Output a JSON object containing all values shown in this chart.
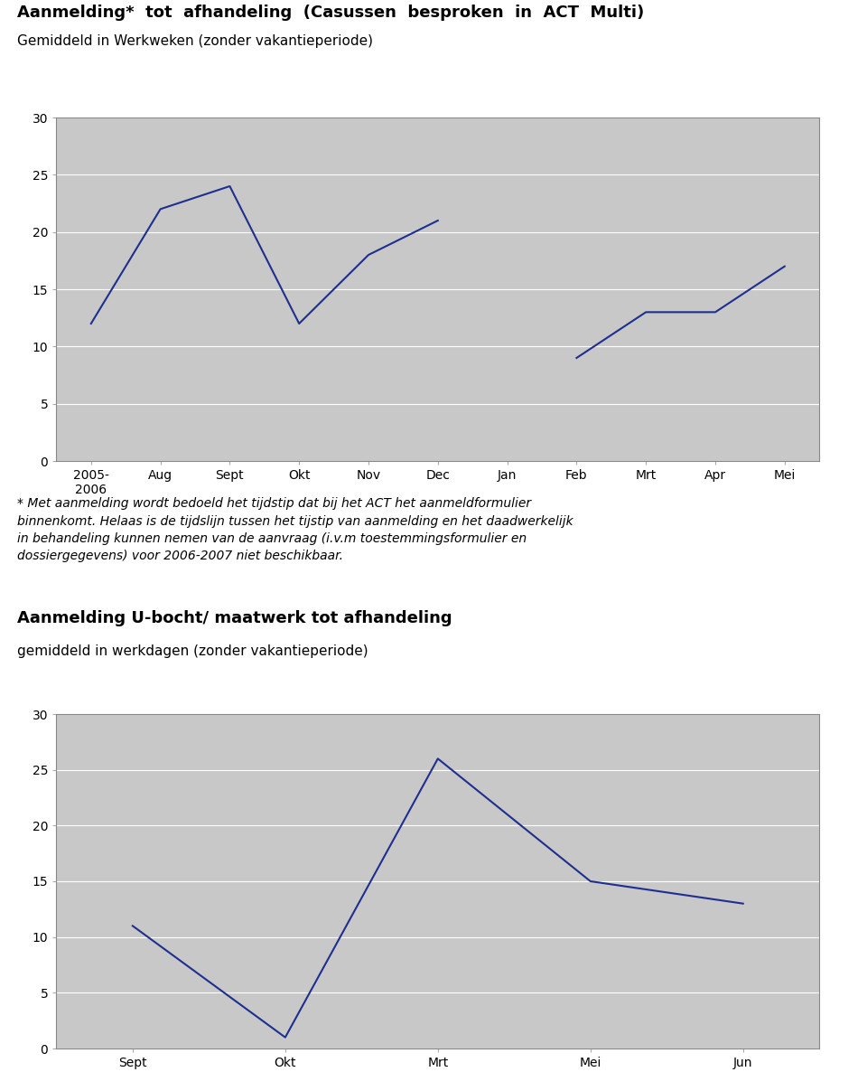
{
  "title1": "Aanmelding*  tot  afhandeling  (Casussen  besproken  in  ACT  Multi)",
  "subtitle1": "Gemiddeld in Werkweken (zonder vakantieperiode)",
  "chart1_x_labels": [
    "2005-\n2006",
    "Aug",
    "Sept",
    "Okt",
    "Nov",
    "Dec",
    "Jan",
    "Feb",
    "Mrt",
    "Apr",
    "Mei"
  ],
  "chart1_y_values": [
    12,
    22,
    24,
    12,
    18,
    21,
    null,
    9,
    13,
    13,
    17
  ],
  "chart1_ylim": [
    0,
    30
  ],
  "chart1_yticks": [
    0,
    5,
    10,
    15,
    20,
    25,
    30
  ],
  "footnote": "* Met aanmelding wordt bedoeld het tijdstip dat bij het ACT het aanmeldformulier\nbinnenkomt. Helaas is de tijdslijn tussen het tijstip van aanmelding en het daadwerkelijk\nin behandeling kunnen nemen van de aanvraag (i.v.m toestemmingsformulier en\ndossiergegevens) voor 2006-2007 niet beschikbaar.",
  "title2": "Aanmelding U-bocht/ maatwerk tot afhandeling",
  "subtitle2": "gemiddeld in werkdagen (zonder vakantieperiode)",
  "chart2_x_labels": [
    "Sept",
    "Okt",
    "Mrt",
    "Mei",
    "Jun"
  ],
  "chart2_y_values": [
    11,
    1,
    26,
    15,
    13
  ],
  "chart2_ylim": [
    0,
    30
  ],
  "chart2_yticks": [
    0,
    5,
    10,
    15,
    20,
    25,
    30
  ],
  "line_color": "#1F2F8F",
  "plot_bg": "#C8C8C8",
  "border_color": "#888888",
  "grid_color": "#ffffff",
  "text_color": "#000000"
}
